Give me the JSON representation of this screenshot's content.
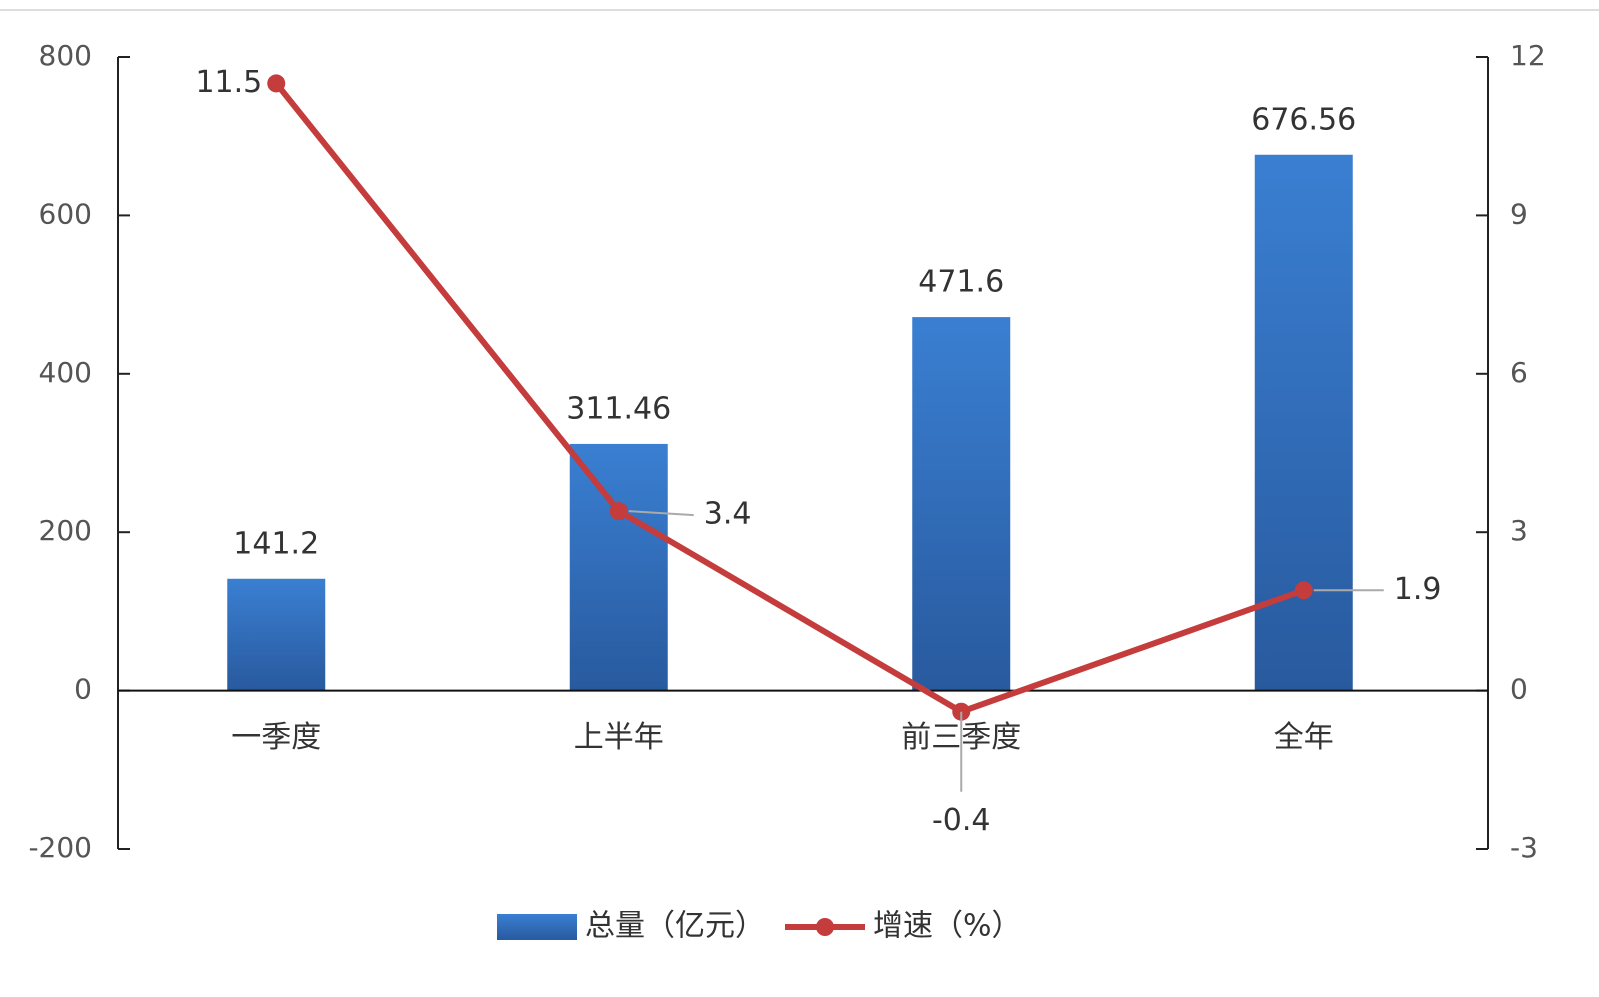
{
  "chart_data": {
    "type": "bar",
    "categories": [
      "一季度",
      "上半年",
      "前三季度",
      "全年"
    ],
    "series": [
      {
        "name": "总量（亿元）",
        "type": "bar",
        "color": "#3274c4",
        "values": [
          141.2,
          311.46,
          471.6,
          676.56
        ]
      },
      {
        "name": "增速（%）",
        "type": "line",
        "axis": "y2",
        "color": "#c43c3c",
        "values": [
          11.5,
          3.4,
          -0.4,
          1.9
        ]
      }
    ],
    "ylim": [
      -200,
      800
    ],
    "yticks": [
      -200,
      0,
      200,
      400,
      600,
      800
    ],
    "y2lim": [
      -3,
      12
    ],
    "y2ticks": [
      -3,
      0,
      3,
      6,
      9,
      12
    ],
    "legend": "bottom"
  }
}
